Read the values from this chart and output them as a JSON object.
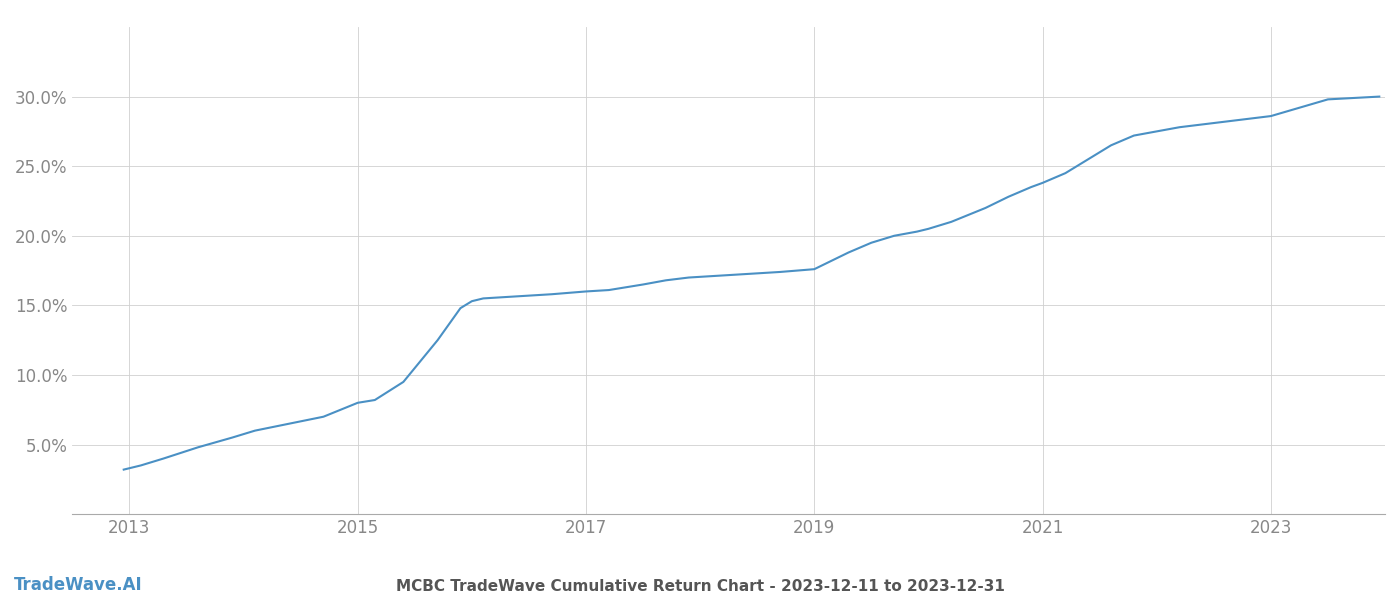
{
  "title": "MCBC TradeWave Cumulative Return Chart - 2023-12-11 to 2023-12-31",
  "watermark": "TradeWave.AI",
  "line_color": "#4a90c4",
  "background_color": "#ffffff",
  "grid_color": "#d0d0d0",
  "x_data": [
    2012.95,
    2013.1,
    2013.3,
    2013.6,
    2013.9,
    2014.1,
    2014.4,
    2014.7,
    2014.85,
    2015.0,
    2015.15,
    2015.4,
    2015.7,
    2015.9,
    2016.0,
    2016.1,
    2016.3,
    2016.5,
    2016.7,
    2016.85,
    2017.0,
    2017.2,
    2017.5,
    2017.7,
    2017.9,
    2018.1,
    2018.3,
    2018.5,
    2018.7,
    2018.85,
    2019.0,
    2019.1,
    2019.3,
    2019.5,
    2019.7,
    2019.9,
    2020.0,
    2020.2,
    2020.5,
    2020.7,
    2020.9,
    2021.0,
    2021.2,
    2021.4,
    2021.6,
    2021.8,
    2022.0,
    2022.2,
    2022.4,
    2022.6,
    2022.8,
    2023.0,
    2023.5,
    2023.95
  ],
  "y_data": [
    3.2,
    3.5,
    4.0,
    4.8,
    5.5,
    6.0,
    6.5,
    7.0,
    7.5,
    8.0,
    8.2,
    9.5,
    12.5,
    14.8,
    15.3,
    15.5,
    15.6,
    15.7,
    15.8,
    15.9,
    16.0,
    16.1,
    16.5,
    16.8,
    17.0,
    17.1,
    17.2,
    17.3,
    17.4,
    17.5,
    17.6,
    18.0,
    18.8,
    19.5,
    20.0,
    20.3,
    20.5,
    21.0,
    22.0,
    22.8,
    23.5,
    23.8,
    24.5,
    25.5,
    26.5,
    27.2,
    27.5,
    27.8,
    28.0,
    28.2,
    28.4,
    28.6,
    29.8,
    30.0
  ],
  "ylim": [
    0,
    35
  ],
  "yticks": [
    5.0,
    10.0,
    15.0,
    20.0,
    25.0,
    30.0
  ],
  "ytick_labels": [
    "5.0%",
    "10.0%",
    "15.0%",
    "20.0%",
    "25.0%",
    "30.0%"
  ],
  "x_years": [
    2013,
    2015,
    2017,
    2019,
    2021,
    2023
  ],
  "xlim": [
    2012.5,
    2024.0
  ],
  "tick_color": "#888888",
  "title_color": "#555555",
  "watermark_color": "#4a90c4",
  "line_width": 1.5,
  "title_fontsize": 11,
  "watermark_fontsize": 12,
  "tick_fontsize": 12
}
